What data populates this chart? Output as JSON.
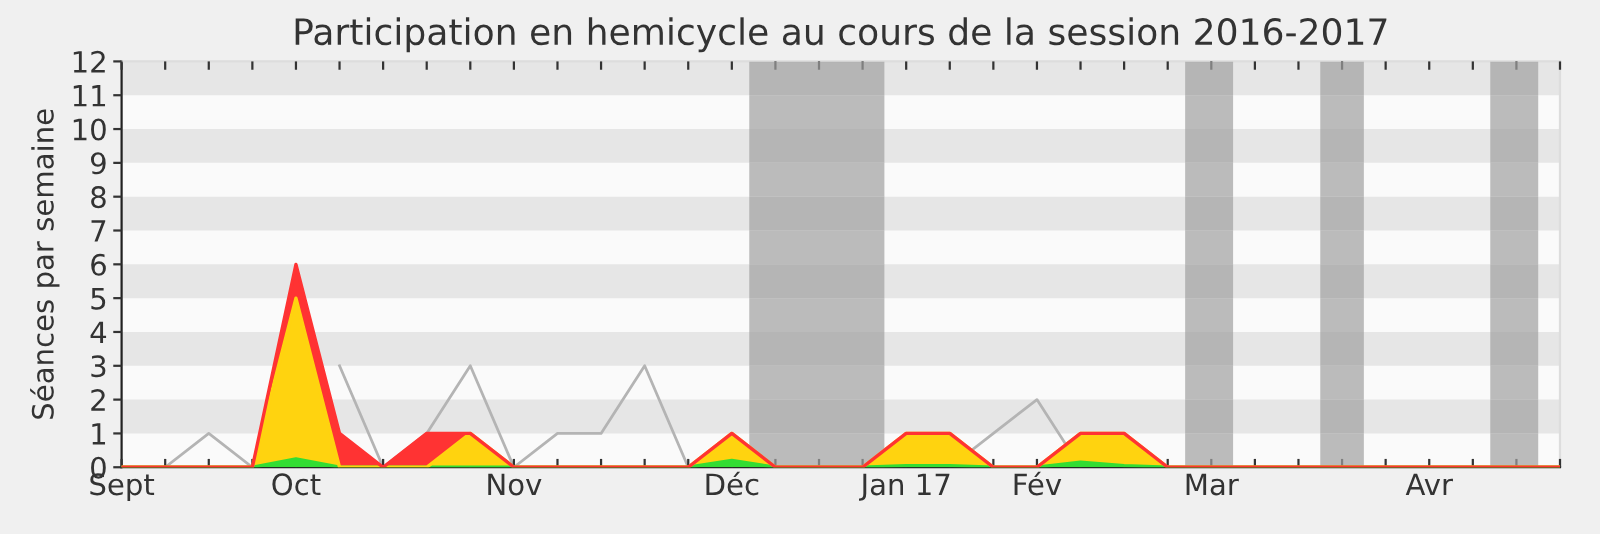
{
  "chart_data": {
    "type": "area",
    "stacked": true,
    "title": "Participation en hemicycle au cours de la session 2016-2017",
    "ylabel": "Séances par semaine",
    "categories": [
      "Sept",
      null,
      null,
      null,
      "Oct",
      null,
      null,
      null,
      null,
      "Nov",
      null,
      null,
      null,
      null,
      "Déc",
      null,
      null,
      null,
      "Jan 17",
      null,
      null,
      "Fév",
      null,
      null,
      null,
      "Mar",
      null,
      null,
      null,
      null,
      "Avr",
      null,
      null,
      null
    ],
    "series": [
      {
        "color": "#33dd33",
        "values": [
          0,
          0,
          0,
          0,
          0.25,
          0,
          0,
          0,
          0,
          0,
          0,
          0,
          0,
          0,
          0.2,
          0,
          0,
          0,
          0.05,
          0.05,
          0,
          0,
          0.15,
          0.05,
          0,
          0,
          0,
          0,
          0,
          0,
          0,
          0,
          0,
          0
        ]
      },
      {
        "color": "#ffd30f",
        "values": [
          0,
          0,
          0,
          0,
          4.75,
          0,
          0,
          0,
          1,
          0,
          0,
          0,
          0,
          0,
          0.8,
          0,
          0,
          0,
          0.95,
          0.95,
          0,
          0,
          0.85,
          0.95,
          0,
          0,
          0,
          0,
          0,
          0,
          0,
          0,
          0,
          0
        ]
      },
      {
        "color": "#ff3333",
        "values": [
          0,
          0,
          0,
          0,
          1,
          1,
          0,
          1,
          0,
          0,
          0,
          0,
          0,
          0,
          0,
          0,
          0,
          0,
          0,
          0,
          0,
          0,
          0,
          0,
          0,
          0,
          0,
          0,
          0,
          0,
          0,
          0,
          0,
          0
        ]
      },
      {
        "type": "line",
        "color": "#b4b4b4",
        "values": [
          null,
          0,
          1,
          0,
          null,
          3,
          0,
          1,
          3,
          0,
          1,
          1,
          3,
          0,
          0,
          0,
          0,
          0,
          0,
          0,
          1,
          2,
          0,
          null,
          null,
          null,
          null,
          null,
          null,
          null,
          null,
          null,
          null,
          null
        ]
      }
    ],
    "ylim": [
      0,
      12
    ],
    "yticks": [
      0,
      1,
      2,
      3,
      4,
      5,
      6,
      7,
      8,
      9,
      10,
      11,
      12
    ],
    "grid": false,
    "bands": [
      {
        "axis": "y",
        "from": 1,
        "to": 2,
        "color": "#e6e6e6"
      },
      {
        "axis": "y",
        "from": 3,
        "to": 4,
        "color": "#e6e6e6"
      },
      {
        "axis": "y",
        "from": 5,
        "to": 6,
        "color": "#e6e6e6"
      },
      {
        "axis": "y",
        "from": 7,
        "to": 8,
        "color": "#e6e6e6"
      },
      {
        "axis": "y",
        "from": 9,
        "to": 10,
        "color": "#e6e6e6"
      },
      {
        "axis": "y",
        "from": 11,
        "to": 12,
        "color": "#e6e6e6"
      }
    ]
  }
}
